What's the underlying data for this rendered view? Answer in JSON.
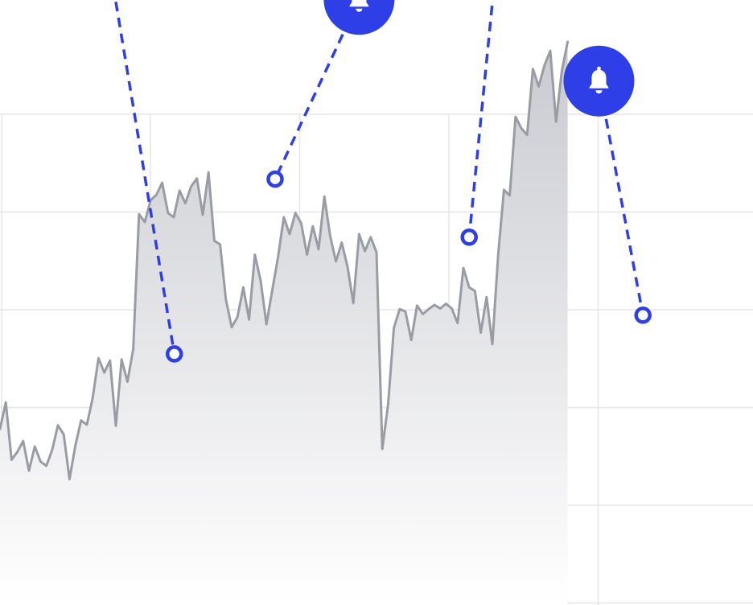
{
  "colors": {
    "accent": "#2E3FE8",
    "line": "#9A9CA5",
    "area_top": "#C9CAD0",
    "area_bottom": "#FFFFFF",
    "grid": "#E6E6E9",
    "marker_fill": "#FFFFFF"
  },
  "icons": {
    "alert": "bell-icon"
  },
  "chart_data": {
    "type": "area",
    "title": "",
    "xlabel": "",
    "ylabel": "",
    "grid": true,
    "legend": "none",
    "xlim": [
      0,
      130
    ],
    "ylim": [
      0,
      100
    ],
    "series": [
      {
        "values": [
          29.1,
          33.5,
          24.0,
          25.3,
          27.1,
          22.2,
          26.2,
          23.7,
          23.0,
          25.6,
          29.7,
          28.2,
          20.8,
          26.3,
          30.5,
          29.8,
          34.2,
          40.8,
          38.4,
          40.4,
          29.6,
          40.6,
          36.9,
          42.3,
          64.6,
          63.3,
          66.9,
          67.8,
          69.8,
          64.8,
          64.1,
          68.5,
          66.4,
          69.2,
          70.5,
          64.5,
          71.5,
          60.2,
          59.6,
          50.5,
          45.9,
          47.6,
          52.5,
          47.2,
          57.9,
          53.6,
          46.4,
          52.0,
          57.5,
          64.1,
          61.3,
          64.8,
          63.1,
          57.9,
          62.6,
          58.8,
          67.5,
          61.0,
          56.8,
          59.9,
          55.9,
          49.9,
          61.3,
          58.5,
          60.8,
          58.3,
          25.8,
          33.1,
          45.8,
          48.9,
          48.5,
          43.8,
          49.5,
          48.1,
          48.9,
          49.6,
          49.0,
          49.8,
          49.0,
          46.6,
          55.7,
          52.5,
          51.9,
          45.0,
          50.9,
          43.1,
          57.8,
          68.6,
          67.7,
          80.7,
          78.8,
          77.7,
          88.6,
          85.7,
          89.2,
          91.6,
          79.9,
          88.3,
          93.1
        ]
      }
    ],
    "alerts": [
      {
        "x": 30.1,
        "y": 41.5,
        "icon_x": 18.9,
        "icon_y": 106
      },
      {
        "x": 47.5,
        "y": 70.4,
        "icon_x": 62.0,
        "icon_y": 100.1
      },
      {
        "x": 81.0,
        "y": 60.8,
        "icon_x": 86.7,
        "icon_y": 116
      },
      {
        "x": 111.0,
        "y": 47.9,
        "icon_x": 103.4,
        "icon_y": 86.6
      }
    ]
  }
}
